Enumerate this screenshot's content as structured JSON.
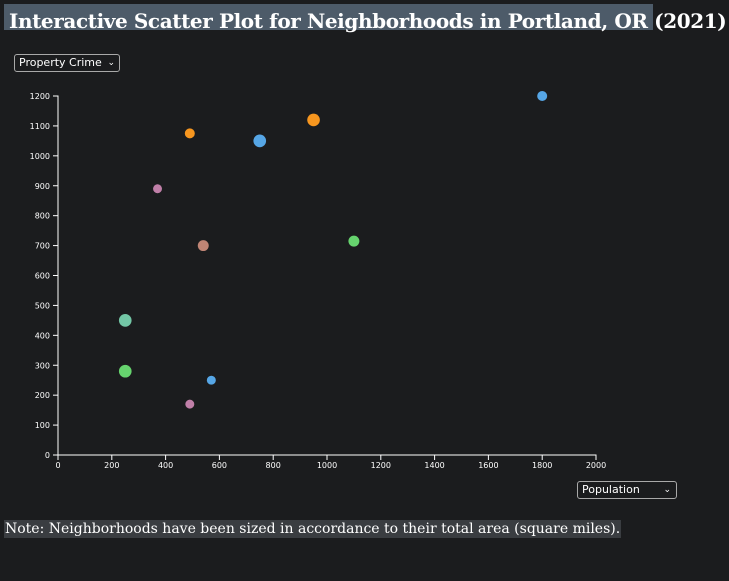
{
  "header": {
    "title": "Interactive Scatter Plot for Neighborhoods in Portland, OR (2021)"
  },
  "controls": {
    "y_select_value": "Property Crime",
    "x_select_value": "Population"
  },
  "note": "Note: Neighborhoods have been sized in accordance to their total area (square miles).",
  "chart_data": {
    "type": "scatter",
    "title": "Interactive Scatter Plot for Neighborhoods in Portland, OR (2021)",
    "xlabel": "",
    "ylabel": "",
    "xlim": [
      0,
      2000
    ],
    "ylim": [
      0,
      1200
    ],
    "x_ticks": [
      0,
      200,
      400,
      600,
      800,
      1000,
      1200,
      1400,
      1600,
      1800,
      2000
    ],
    "y_ticks": [
      0,
      100,
      200,
      300,
      400,
      500,
      600,
      700,
      800,
      900,
      1000,
      1100,
      1200
    ],
    "grid": false,
    "points": [
      {
        "x": 1800,
        "y": 1200,
        "size": 1.0,
        "color": "#56a6e6"
      },
      {
        "x": 950,
        "y": 1120,
        "size": 1.6,
        "color": "#f7961f"
      },
      {
        "x": 490,
        "y": 1075,
        "size": 1.0,
        "color": "#f7961f"
      },
      {
        "x": 750,
        "y": 1050,
        "size": 1.6,
        "color": "#56a6e6"
      },
      {
        "x": 370,
        "y": 890,
        "size": 0.8,
        "color": "#c07fa8"
      },
      {
        "x": 540,
        "y": 700,
        "size": 1.2,
        "color": "#c08575"
      },
      {
        "x": 1100,
        "y": 715,
        "size": 1.2,
        "color": "#66d36e"
      },
      {
        "x": 250,
        "y": 450,
        "size": 1.6,
        "color": "#73c6a6"
      },
      {
        "x": 250,
        "y": 280,
        "size": 1.6,
        "color": "#66d36e"
      },
      {
        "x": 570,
        "y": 250,
        "size": 0.8,
        "color": "#56a6e6"
      },
      {
        "x": 490,
        "y": 170,
        "size": 0.8,
        "color": "#c07fa8"
      }
    ]
  }
}
